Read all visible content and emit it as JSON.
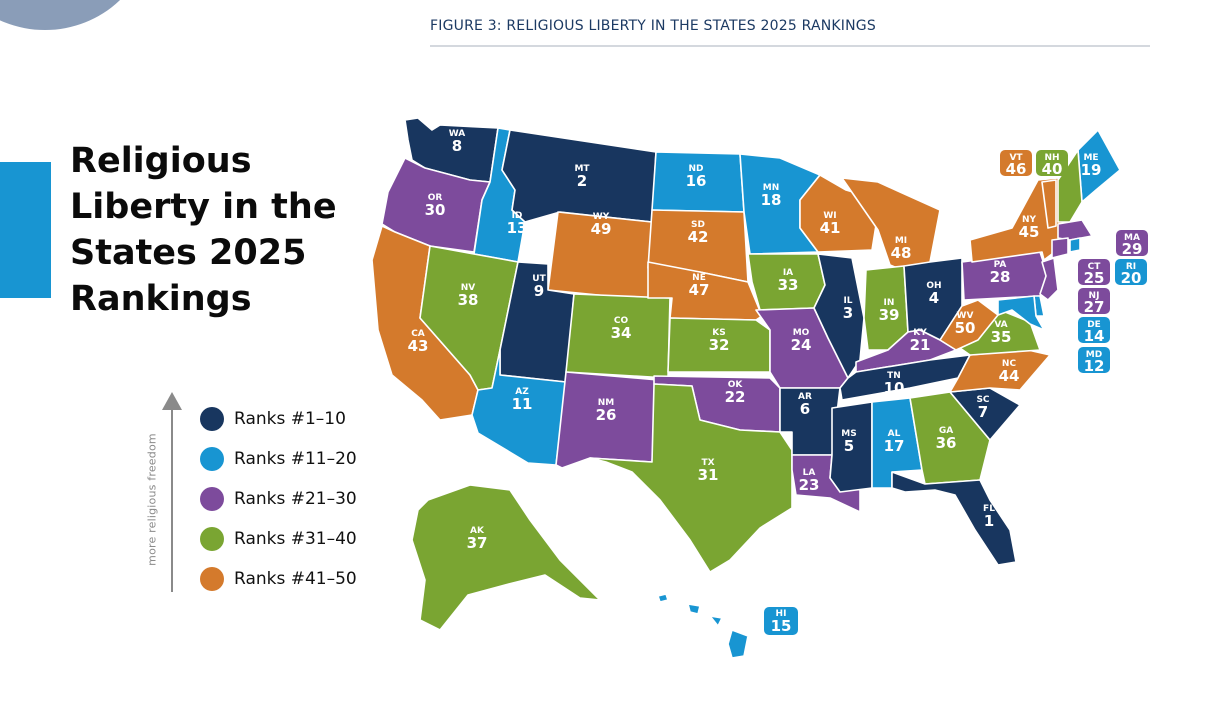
{
  "figure_caption": "FIGURE 3:  RELIGIOUS LIBERTY IN THE STATES 2025 RANKINGS",
  "title_lines": [
    "Religious",
    "Liberty in the",
    "States 2025",
    "Rankings"
  ],
  "legend_axis_label": "more religious freedom",
  "legend": [
    {
      "label": "Ranks #1–10",
      "color": "#18365f"
    },
    {
      "label": "Ranks #11–20",
      "color": "#1895d2"
    },
    {
      "label": "Ranks #21–30",
      "color": "#7d4b9c"
    },
    {
      "label": "Ranks #31–40",
      "color": "#7aa532"
    },
    {
      "label": "Ranks #41–50",
      "color": "#d47a2c"
    }
  ],
  "states": [
    {
      "abbr": "WA",
      "rank": "8"
    },
    {
      "abbr": "OR",
      "rank": "30"
    },
    {
      "abbr": "CA",
      "rank": "43"
    },
    {
      "abbr": "ID",
      "rank": "13"
    },
    {
      "abbr": "NV",
      "rank": "38"
    },
    {
      "abbr": "MT",
      "rank": "2"
    },
    {
      "abbr": "WY",
      "rank": "49"
    },
    {
      "abbr": "UT",
      "rank": "9"
    },
    {
      "abbr": "AZ",
      "rank": "11"
    },
    {
      "abbr": "CO",
      "rank": "34"
    },
    {
      "abbr": "NM",
      "rank": "26"
    },
    {
      "abbr": "ND",
      "rank": "16"
    },
    {
      "abbr": "SD",
      "rank": "42"
    },
    {
      "abbr": "NE",
      "rank": "47"
    },
    {
      "abbr": "KS",
      "rank": "32"
    },
    {
      "abbr": "OK",
      "rank": "22"
    },
    {
      "abbr": "TX",
      "rank": "31"
    },
    {
      "abbr": "MN",
      "rank": "18"
    },
    {
      "abbr": "IA",
      "rank": "33"
    },
    {
      "abbr": "MO",
      "rank": "24"
    },
    {
      "abbr": "AR",
      "rank": "6"
    },
    {
      "abbr": "LA",
      "rank": "23"
    },
    {
      "abbr": "WI",
      "rank": "41"
    },
    {
      "abbr": "IL",
      "rank": "3"
    },
    {
      "abbr": "MI",
      "rank": "48"
    },
    {
      "abbr": "IN",
      "rank": "39"
    },
    {
      "abbr": "OH",
      "rank": "4"
    },
    {
      "abbr": "KY",
      "rank": "21"
    },
    {
      "abbr": "TN",
      "rank": "10"
    },
    {
      "abbr": "MS",
      "rank": "5"
    },
    {
      "abbr": "AL",
      "rank": "17"
    },
    {
      "abbr": "GA",
      "rank": "36"
    },
    {
      "abbr": "FL",
      "rank": "1"
    },
    {
      "abbr": "SC",
      "rank": "7"
    },
    {
      "abbr": "NC",
      "rank": "44"
    },
    {
      "abbr": "VA",
      "rank": "35"
    },
    {
      "abbr": "WV",
      "rank": "50"
    },
    {
      "abbr": "PA",
      "rank": "28"
    },
    {
      "abbr": "NY",
      "rank": "45"
    },
    {
      "abbr": "ME",
      "rank": "19"
    },
    {
      "abbr": "AK",
      "rank": "37"
    },
    {
      "abbr": "HI",
      "rank": "15"
    }
  ],
  "callouts": [
    {
      "abbr": "VT",
      "rank": "46"
    },
    {
      "abbr": "NH",
      "rank": "40"
    },
    {
      "abbr": "MA",
      "rank": "29"
    },
    {
      "abbr": "CT",
      "rank": "25"
    },
    {
      "abbr": "RI",
      "rank": "20"
    },
    {
      "abbr": "NJ",
      "rank": "27"
    },
    {
      "abbr": "DE",
      "rank": "14"
    },
    {
      "abbr": "MD",
      "rank": "12"
    }
  ]
}
